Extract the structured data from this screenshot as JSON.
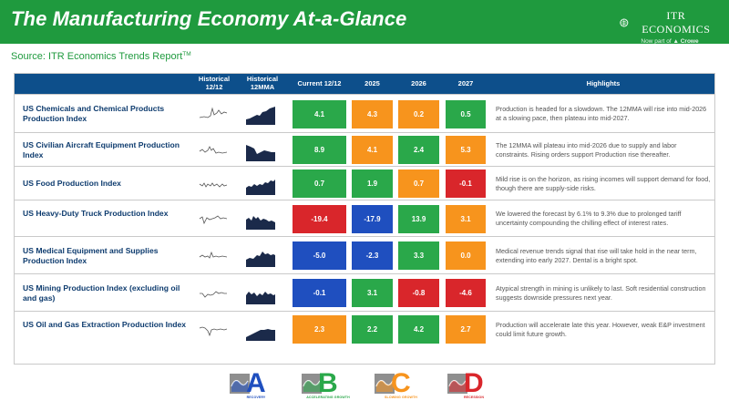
{
  "header": {
    "title": "The Manufacturing Economy At-a-Glance",
    "logo_main": "ITR ECONOMICS",
    "logo_sub_prefix": "Now part of",
    "logo_sub_brand": "Crowe"
  },
  "source": {
    "text": "Source: ITR Economics Trends Report",
    "mark": "TM"
  },
  "columns": {
    "hist_1212": "Historical 12/12",
    "hist_12mma": "Historical 12MMA",
    "current": "Current 12/12",
    "y2025": "2025",
    "y2026": "2026",
    "y2027": "2027",
    "highlights": "Highlights"
  },
  "colors": {
    "A": "#1f4fbf",
    "B": "#2aa84a",
    "C": "#f7941d",
    "D": "#d9262b",
    "header_green": "#1f9a3e",
    "table_header_blue": "#0d4f8b"
  },
  "rows": [
    {
      "name": "US Chemicals and Chemical Products Production Index",
      "current": {
        "value": "4.1",
        "phase": "B"
      },
      "y2025": {
        "value": "4.3",
        "phase": "C"
      },
      "y2026": {
        "value": "0.2",
        "phase": "C"
      },
      "y2027": {
        "value": "0.5",
        "phase": "B"
      },
      "highlight": "Production is headed for a slowdown. The 12MMA will rise into mid-2026 at a slowing pace, then plateau into mid-2027."
    },
    {
      "name": "US Civilian Aircraft Equipment Production Index",
      "current": {
        "value": "8.9",
        "phase": "B"
      },
      "y2025": {
        "value": "4.1",
        "phase": "C"
      },
      "y2026": {
        "value": "2.4",
        "phase": "B"
      },
      "y2027": {
        "value": "5.3",
        "phase": "C"
      },
      "highlight": "The 12MMA will plateau into mid-2026 due to supply and labor constraints. Rising orders support Production rise thereafter."
    },
    {
      "name": "US Food Production Index",
      "current": {
        "value": "0.7",
        "phase": "B"
      },
      "y2025": {
        "value": "1.9",
        "phase": "B"
      },
      "y2026": {
        "value": "0.7",
        "phase": "C"
      },
      "y2027": {
        "value": "-0.1",
        "phase": "D"
      },
      "highlight": "Mild rise is on the horizon, as rising incomes will support demand for food, though there are supply-side risks."
    },
    {
      "name": "US Heavy-Duty Truck Production Index",
      "current": {
        "value": "-19.4",
        "phase": "D"
      },
      "y2025": {
        "value": "-17.9",
        "phase": "A"
      },
      "y2026": {
        "value": "13.9",
        "phase": "B"
      },
      "y2027": {
        "value": "3.1",
        "phase": "C"
      },
      "highlight": "We lowered the forecast by 6.1% to 9.3% due to prolonged tariff uncertainty compounding the chilling effect of interest rates."
    },
    {
      "name": "US Medical Equipment and Supplies Production Index",
      "current": {
        "value": "-5.0",
        "phase": "A"
      },
      "y2025": {
        "value": "-2.3",
        "phase": "A"
      },
      "y2026": {
        "value": "3.3",
        "phase": "B"
      },
      "y2027": {
        "value": "0.0",
        "phase": "C"
      },
      "highlight": "Medical revenue trends signal that rise will take hold in the near term, extending into early 2027. Dental is a bright spot."
    },
    {
      "name": "US Mining Production Index (excluding oil and gas)",
      "current": {
        "value": "-0.1",
        "phase": "A"
      },
      "y2025": {
        "value": "3.1",
        "phase": "B"
      },
      "y2026": {
        "value": "-0.8",
        "phase": "D"
      },
      "y2027": {
        "value": "-4.6",
        "phase": "D"
      },
      "highlight": "Atypical strength in mining is unlikely to last. Soft residential construction suggests downside pressures next year."
    },
    {
      "name": "US Oil and Gas Extraction Production Index",
      "current": {
        "value": "2.3",
        "phase": "C"
      },
      "y2025": {
        "value": "2.2",
        "phase": "B"
      },
      "y2026": {
        "value": "4.2",
        "phase": "B"
      },
      "y2027": {
        "value": "2.7",
        "phase": "C"
      },
      "highlight": "Production will accelerate late this year. However, weak E&P investment could limit future growth."
    }
  ],
  "legend": [
    {
      "letter": "A",
      "label": "RECOVERY",
      "icon": "phase-chart-icon"
    },
    {
      "letter": "B",
      "label": "ACCELERATING GROWTH",
      "icon": "phase-chart-icon"
    },
    {
      "letter": "C",
      "label": "SLOWING GROWTH",
      "icon": "phase-chart-icon"
    },
    {
      "letter": "D",
      "label": "RECESSION",
      "icon": "phase-chart-icon"
    }
  ]
}
